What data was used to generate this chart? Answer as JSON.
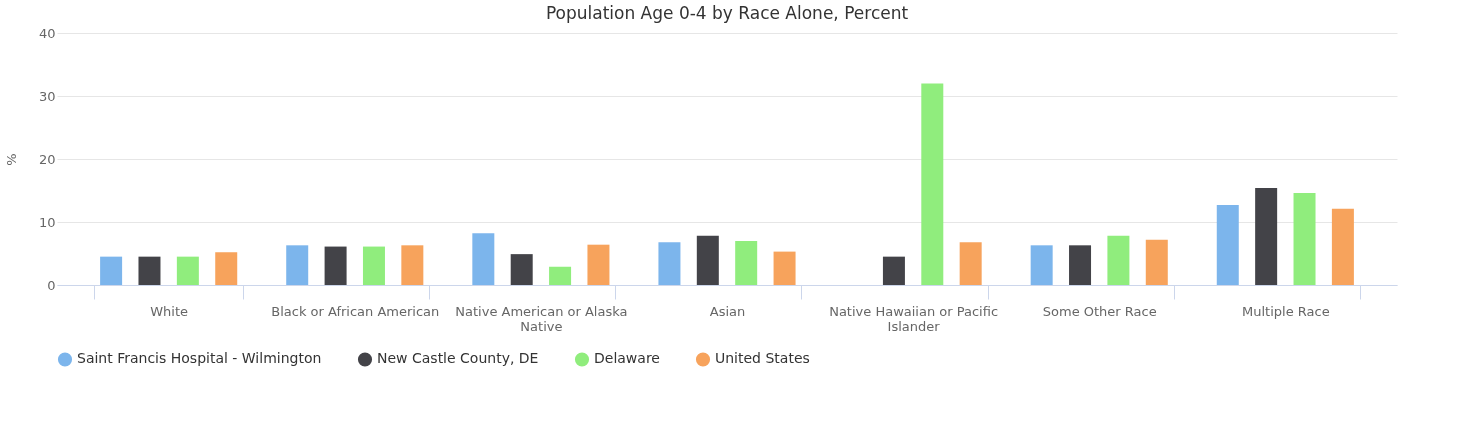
{
  "chart_data": {
    "type": "bar",
    "title": "Population Age 0-4 by Race Alone, Percent",
    "ylabel": "%",
    "categories": [
      "White",
      "Black or African American",
      "Native American or Alaska Native",
      "Asian",
      "Native Hawaiian or Pacific Islander",
      "Some Other Race",
      "Multiple Race"
    ],
    "series": [
      {
        "name": "Saint Francis Hospital - Wilmington",
        "color": "#7cb5ec",
        "values": [
          4.5,
          6.3,
          8.2,
          6.8,
          null,
          6.3,
          12.7
        ]
      },
      {
        "name": "New Castle County, DE",
        "color": "#434348",
        "values": [
          4.5,
          6.1,
          4.9,
          7.8,
          4.5,
          6.3,
          15.4
        ]
      },
      {
        "name": "Delaware",
        "color": "#90ed7d",
        "values": [
          4.5,
          6.1,
          2.9,
          7.0,
          32.0,
          7.8,
          14.6
        ]
      },
      {
        "name": "United States",
        "color": "#f7a35c",
        "values": [
          5.2,
          6.3,
          6.4,
          5.3,
          6.8,
          7.2,
          12.1
        ]
      }
    ],
    "ylim": [
      0,
      40
    ],
    "yticks": [
      0,
      10,
      20,
      30,
      40
    ],
    "grid": "y",
    "legend": "bottom"
  }
}
